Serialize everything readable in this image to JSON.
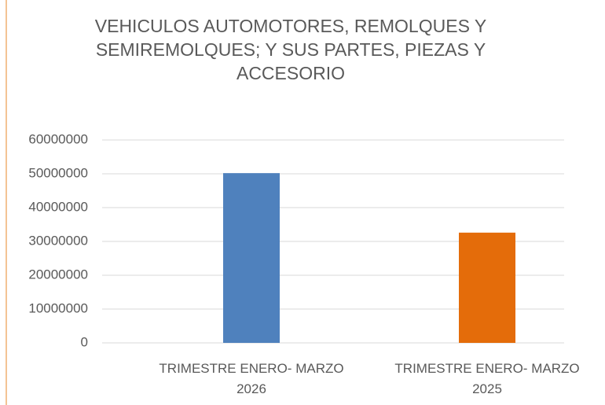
{
  "chart_data": {
    "type": "bar",
    "title": "VEHICULOS  AUTOMOTORES,  REMOLQUES Y SEMIREMOLQUES;  Y SUS PARTES, PIEZAS Y ACCESORIO",
    "categories": [
      "TRIMESTRE ENERO- MARZO 2026",
      "TRIMESTRE ENERO- MARZO 2025"
    ],
    "values": [
      50200000,
      32600000
    ],
    "colors": [
      "#4f81bd",
      "#e46c0a"
    ],
    "ylim": [
      0,
      60000000
    ],
    "yticks": [
      0,
      10000000,
      20000000,
      30000000,
      40000000,
      50000000,
      60000000
    ],
    "grid": true
  }
}
